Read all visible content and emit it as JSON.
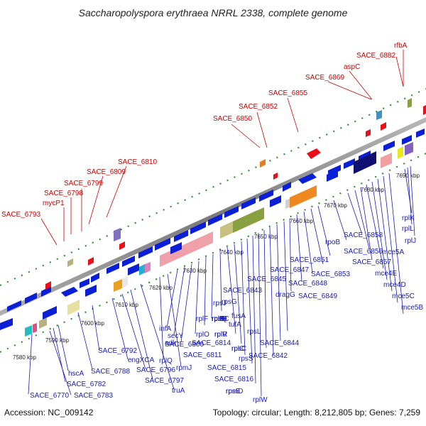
{
  "title": "Saccharopolyspora erythraea NRRL 2338, complete genome",
  "footer": {
    "accession": "Accession: NC_009142",
    "summary": "Topology: circular; Length: 8,212,805 bp; Genes: 7,259"
  },
  "colors": {
    "forward_gene": "#0a1fd6",
    "reverse_gene": "#0a1fd6",
    "rna_gene": "#e8101a",
    "label_red": "#cc0000",
    "label_blue": "#1a1ab8",
    "tick_green": "#228b22",
    "backbone": "#808080"
  },
  "scale_labels": [
    "7580 kbp",
    "7590 kbp",
    "7600 kbp",
    "7610 kbp",
    "7620 kbp",
    "7630 kbp",
    "7640 kbp",
    "7650 kbp",
    "7660 kbp",
    "7670 kbp",
    "7680 kbp",
    "7690 kbp"
  ],
  "top_labels": [
    "SACE_6793",
    "mycP1",
    "SACE_6798",
    "SACE_6799",
    "SACE_6809",
    "SACE_6810",
    "SACE_6850",
    "SACE_6852",
    "SACE_6855",
    "SACE_6869",
    "aspC",
    "SACE_6882",
    "rfbA"
  ],
  "bottom_labels": [
    "SACE_6770",
    "SACE_6783",
    "SACE_6782",
    "hscA",
    "SACE_6788",
    "SACE_6792",
    "engXCA",
    "SACE_6796",
    "SACE_6797",
    "truA",
    "rplQ",
    "rpmJ",
    "infA",
    "secY",
    "adk",
    "SACE_6800",
    "rplO",
    "rpmD",
    "rpsE",
    "rplR",
    "rplF",
    "rpsH",
    "rplE",
    "rplX",
    "rplN",
    "rpsQ",
    "rpmC",
    "rplP",
    "rpsC",
    "rplV",
    "rpsS",
    "rplB",
    "rplW",
    "rplD",
    "rplC",
    "rpsJ",
    "SACE_6811",
    "SACE_6814",
    "SACE_6815",
    "SACE_6816",
    "rpsL",
    "rpsG",
    "fusA",
    "tufA",
    "SACE_6843",
    "SACE_6844",
    "SACE_6842",
    "SACE_6845",
    "dragG",
    "SACE_6847",
    "SACE_6848",
    "SACE_6849",
    "SACE_6851",
    "SACE_6853",
    "rpoB",
    "SACE_6858",
    "SACE_6856",
    "SACE_6857",
    "mce5A",
    "mce4E",
    "mce4D",
    "mce5C",
    "mce5B",
    "rplK",
    "rplL",
    "rplJ"
  ]
}
